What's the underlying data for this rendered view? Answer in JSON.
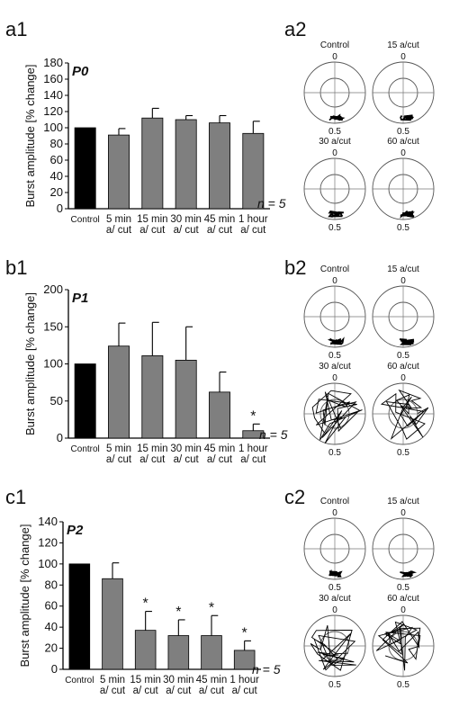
{
  "panel_labels": [
    "a1",
    "a2",
    "b1",
    "b2",
    "c1",
    "c2"
  ],
  "chart_data": [
    {
      "type": "bar",
      "panel": "a1",
      "title": "P0",
      "ylabel": "Burst amplitude [% change]",
      "ylim": [
        0,
        180
      ],
      "yticks": [
        0,
        20,
        40,
        60,
        80,
        100,
        120,
        140,
        160,
        180
      ],
      "categories": [
        [
          "Control"
        ],
        [
          "5 min",
          "a/ cut"
        ],
        [
          "15 min",
          "a/ cut"
        ],
        [
          "30 min",
          "a/ cut"
        ],
        [
          "45 min",
          "a/ cut"
        ],
        [
          "1 hour",
          "a/ cut"
        ]
      ],
      "values": [
        100,
        91,
        112,
        110,
        106,
        93
      ],
      "errors": [
        0,
        8,
        12,
        5,
        9,
        15
      ],
      "colors": [
        "#000000",
        "#7f7f7f",
        "#7f7f7f",
        "#7f7f7f",
        "#7f7f7f",
        "#7f7f7f"
      ],
      "significant": [
        false,
        false,
        false,
        false,
        false,
        false
      ],
      "n_label": "n = 5"
    },
    {
      "type": "bar",
      "panel": "b1",
      "title": "P1",
      "ylabel": "Burst amplitude [% change]",
      "ylim": [
        0,
        200
      ],
      "yticks": [
        0,
        50,
        100,
        150,
        200
      ],
      "categories": [
        [
          "Control"
        ],
        [
          "5 min",
          "a/ cut"
        ],
        [
          "15 min",
          "a/ cut"
        ],
        [
          "30 min",
          "a/ cut"
        ],
        [
          "45 min",
          "a/ cut"
        ],
        [
          "1 hour",
          "a/ cut"
        ]
      ],
      "values": [
        100,
        124,
        111,
        105,
        62,
        10
      ],
      "errors": [
        0,
        31,
        45,
        45,
        27,
        9
      ],
      "colors": [
        "#000000",
        "#7f7f7f",
        "#7f7f7f",
        "#7f7f7f",
        "#7f7f7f",
        "#7f7f7f"
      ],
      "significant": [
        false,
        false,
        false,
        false,
        false,
        true
      ],
      "n_label": "n = 5"
    },
    {
      "type": "bar",
      "panel": "c1",
      "title": "P2",
      "ylabel": "Burst amplitude [% change]",
      "ylim": [
        0,
        140
      ],
      "yticks": [
        0,
        20,
        40,
        60,
        80,
        100,
        120,
        140
      ],
      "categories": [
        [
          "Control"
        ],
        [
          "5 min",
          "a/ cut"
        ],
        [
          "15 min",
          "a/ cut"
        ],
        [
          "30 min",
          "a/ cut"
        ],
        [
          "45 min",
          "a/ cut"
        ],
        [
          "1 hour",
          "a/ cut"
        ]
      ],
      "values": [
        100,
        86,
        37,
        32,
        32,
        18
      ],
      "errors": [
        0,
        15,
        18,
        15,
        19,
        9
      ],
      "colors": [
        "#000000",
        "#7f7f7f",
        "#7f7f7f",
        "#7f7f7f",
        "#7f7f7f",
        "#7f7f7f"
      ],
      "significant": [
        false,
        false,
        true,
        true,
        true,
        true
      ],
      "n_label": "n = 5"
    }
  ],
  "polar_panels": [
    {
      "panel": "a2",
      "plots": [
        {
          "label": "Control",
          "top": "0",
          "bottom": "0.5",
          "trace": "tight"
        },
        {
          "label": "15 a/cut",
          "top": "0",
          "bottom": "0.5",
          "trace": "tight"
        },
        {
          "label": "30 a/cut",
          "top": "0",
          "bottom": "0.5",
          "trace": "tight"
        },
        {
          "label": "60 a/cut",
          "top": "0",
          "bottom": "0.5",
          "trace": "tight"
        }
      ]
    },
    {
      "panel": "b2",
      "plots": [
        {
          "label": "Control",
          "top": "0",
          "bottom": "0.5",
          "trace": "tight"
        },
        {
          "label": "15 a/cut",
          "top": "0",
          "bottom": "0.5",
          "trace": "tight"
        },
        {
          "label": "30 a/cut",
          "top": "0",
          "bottom": "0.5",
          "trace": "scattered"
        },
        {
          "label": "60 a/cut",
          "top": "0",
          "bottom": "0.5",
          "trace": "scattered"
        }
      ]
    },
    {
      "panel": "c2",
      "plots": [
        {
          "label": "Control",
          "top": "0",
          "bottom": "0.5",
          "trace": "tight"
        },
        {
          "label": "15 a/cut",
          "top": "0",
          "bottom": "0.5",
          "trace": "tight"
        },
        {
          "label": "30 a/cut",
          "top": "0",
          "bottom": "0.5",
          "trace": "scattered"
        },
        {
          "label": "60 a/cut",
          "top": "0",
          "bottom": "0.5",
          "trace": "scattered"
        }
      ]
    }
  ]
}
